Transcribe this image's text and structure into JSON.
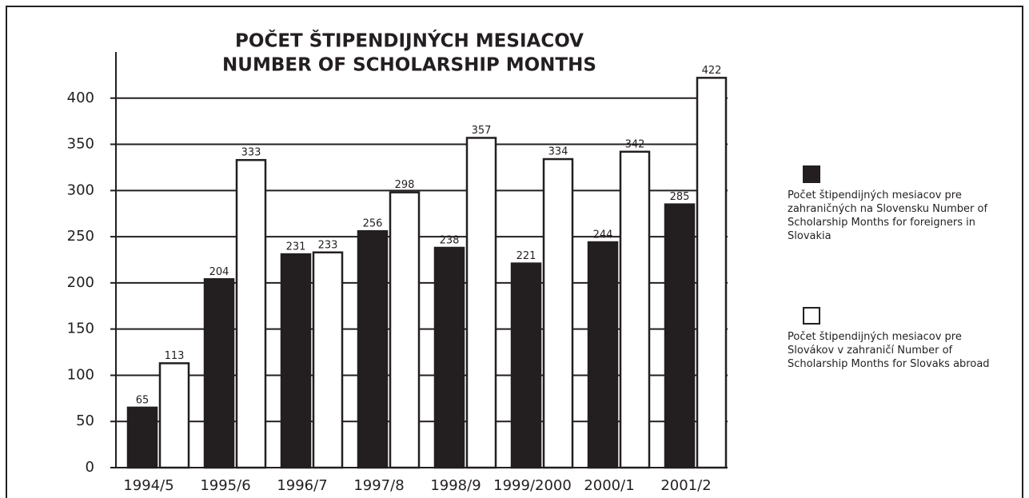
{
  "chart_data": {
    "type": "bar",
    "title": "POČET ŠTIPENDIJNÝCH MESIACOV",
    "subtitle": "NUMBER OF SCHOLARSHIP MONTHS",
    "categories": [
      "1994/5",
      "1995/6",
      "1996/7",
      "1997/8",
      "1998/9",
      "1999/2000",
      "2000/1",
      "2001/2"
    ],
    "series": [
      {
        "name": "Počet štipendijných mesiacov pre zahraničných na Slovensku Number of Scholarship Months for foreigners in Slovakia",
        "color": "#231f20",
        "values": [
          65,
          204,
          231,
          256,
          238,
          221,
          244,
          285
        ]
      },
      {
        "name": "Počet štipendijných mesiacov pre Slovákov v  zahraničí Number of Scholarship Months for Slovaks abroad",
        "color": "#ffffff",
        "values": [
          113,
          333,
          233,
          298,
          357,
          334,
          342,
          422
        ]
      }
    ],
    "ylim": [
      0,
      450
    ],
    "yticks": [
      0,
      50,
      100,
      150,
      200,
      250,
      300,
      350,
      400
    ],
    "grid": true
  }
}
